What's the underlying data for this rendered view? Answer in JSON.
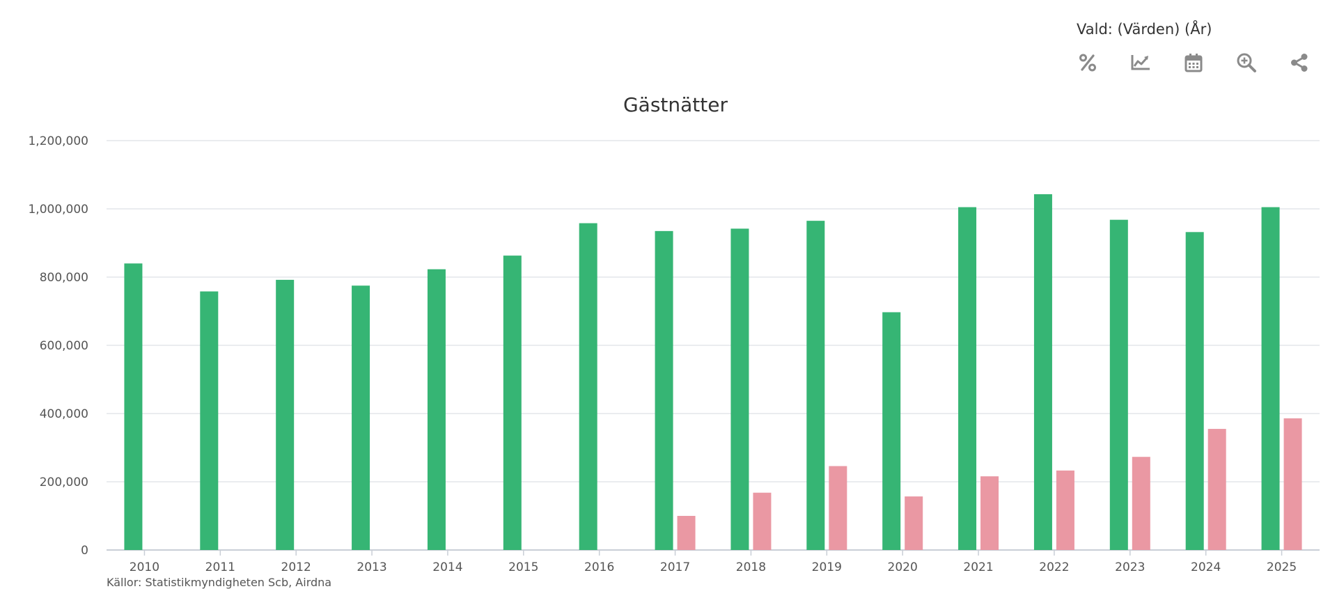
{
  "header": {
    "selected_label": "Vald: (Värden) (År)"
  },
  "toolbar": {
    "icons": [
      "percent-icon",
      "line-chart-icon",
      "calendar-icon",
      "zoom-in-icon",
      "share-icon"
    ]
  },
  "colors": {
    "series_1": "#36b574",
    "series_2": "#ea98a3",
    "grid": "#e3e6ea",
    "axis": "#c9ced6",
    "icon": "#8a8a8a"
  },
  "chart_data": {
    "type": "bar",
    "title": "Gästnätter",
    "xlabel": "",
    "ylabel": "",
    "ylim": [
      0,
      1200000
    ],
    "y_ticks": [
      "0",
      "200,000",
      "400,000",
      "600,000",
      "800,000",
      "1,000,000",
      "1,200,000"
    ],
    "grid": true,
    "legend": "none",
    "categories": [
      "2010",
      "2011",
      "2012",
      "2013",
      "2014",
      "2015",
      "2016",
      "2017",
      "2018",
      "2019",
      "2020",
      "2021",
      "2022",
      "2023",
      "2024",
      "2025"
    ],
    "series": [
      {
        "values": [
          840000,
          758000,
          792000,
          775000,
          823000,
          863000,
          958000,
          935000,
          942000,
          965000,
          697000,
          1005000,
          1043000,
          968000,
          932000,
          1005000
        ]
      },
      {
        "values": [
          null,
          null,
          null,
          null,
          null,
          null,
          null,
          100000,
          168000,
          246000,
          157000,
          216000,
          233000,
          273000,
          355000,
          386000
        ]
      }
    ]
  },
  "footer": {
    "sources": "Källor: Statistikmyndigheten Scb, Airdna"
  }
}
